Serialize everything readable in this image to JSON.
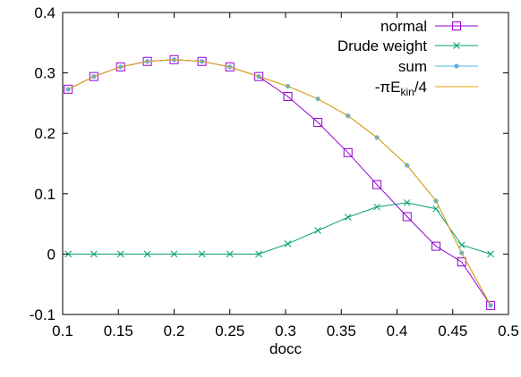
{
  "chart_data": {
    "type": "line",
    "title": "",
    "xlabel": "docc",
    "ylabel": "",
    "xlim": [
      0.1,
      0.5
    ],
    "ylim": [
      -0.1,
      0.4
    ],
    "xticks": [
      0.1,
      0.15,
      0.2,
      0.25,
      0.3,
      0.35,
      0.4,
      0.45,
      0.5
    ],
    "xtick_labels": [
      "0.1",
      "0.15",
      "0.2",
      "0.25",
      "0.3",
      "0.35",
      "0.4",
      "0.45",
      "0.5"
    ],
    "yticks": [
      -0.1,
      0,
      0.1,
      0.2,
      0.3,
      0.4
    ],
    "ytick_labels": [
      "-0.1",
      "0",
      "0.1",
      "0.2",
      "0.3",
      "0.4"
    ],
    "grid": false,
    "legend_position": "top-right",
    "series": [
      {
        "name": "normal",
        "color": "#9400d3",
        "marker": "open-square",
        "x": [
          0.105,
          0.128,
          0.152,
          0.176,
          0.2,
          0.225,
          0.25,
          0.276,
          0.302,
          0.329,
          0.356,
          0.382,
          0.409,
          0.435,
          0.458,
          0.484
        ],
        "y": [
          0.273,
          0.294,
          0.31,
          0.319,
          0.322,
          0.319,
          0.31,
          0.294,
          0.261,
          0.218,
          0.168,
          0.115,
          0.062,
          0.013,
          -0.013,
          -0.085
        ]
      },
      {
        "name": "Drude weight",
        "color": "#009e73",
        "marker": "cross",
        "x": [
          0.105,
          0.128,
          0.152,
          0.176,
          0.2,
          0.225,
          0.25,
          0.276,
          0.302,
          0.329,
          0.356,
          0.382,
          0.409,
          0.435,
          0.458,
          0.484
        ],
        "y": [
          0.0,
          0.0,
          0.0,
          0.0,
          0.0,
          0.0,
          0.0,
          0.0,
          0.017,
          0.039,
          0.061,
          0.078,
          0.085,
          0.075,
          0.015,
          0.0
        ]
      },
      {
        "name": "sum",
        "color": "#56b4e9",
        "marker": "dot",
        "x": [
          0.105,
          0.128,
          0.152,
          0.176,
          0.2,
          0.225,
          0.25,
          0.276,
          0.302,
          0.329,
          0.356,
          0.382,
          0.409,
          0.435,
          0.458,
          0.484
        ],
        "y": [
          0.273,
          0.294,
          0.31,
          0.319,
          0.322,
          0.319,
          0.31,
          0.294,
          0.278,
          0.257,
          0.229,
          0.193,
          0.147,
          0.088,
          0.002,
          -0.085
        ]
      },
      {
        "name_parts": [
          "-πE",
          "kin",
          "/4"
        ],
        "color": "#e69f00",
        "marker": "none",
        "x": [
          0.105,
          0.128,
          0.152,
          0.176,
          0.2,
          0.225,
          0.25,
          0.276,
          0.302,
          0.329,
          0.356,
          0.382,
          0.409,
          0.435,
          0.458,
          0.484
        ],
        "y": [
          0.273,
          0.294,
          0.31,
          0.319,
          0.322,
          0.319,
          0.31,
          0.294,
          0.278,
          0.257,
          0.229,
          0.193,
          0.147,
          0.088,
          0.002,
          -0.085
        ]
      }
    ]
  }
}
